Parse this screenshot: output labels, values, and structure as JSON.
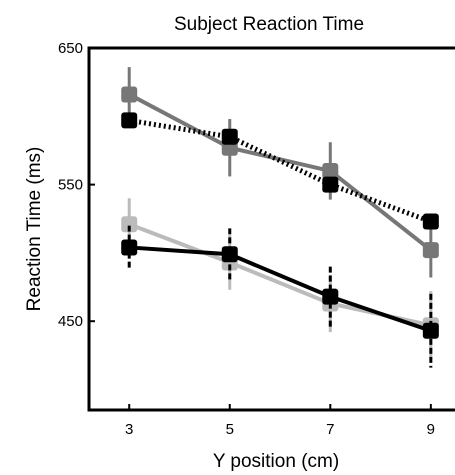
{
  "chart_data": {
    "type": "line",
    "title": "Subject Reaction Time",
    "xlabel": "Y position (cm)",
    "ylabel": "Reaction Time (ms)",
    "x": [
      3,
      5,
      7,
      9
    ],
    "x_tick_labels": [
      "3",
      "5",
      "7",
      "9"
    ],
    "y_ticks": [
      450,
      550,
      650
    ],
    "y_tick_labels": [
      "450",
      "550",
      "650"
    ],
    "xlim": [
      2.2,
      9.6
    ],
    "ylim": [
      385,
      650
    ],
    "grid": false,
    "series": [
      {
        "color": "#777777",
        "line_style": "solid",
        "values": [
          616,
          577,
          560,
          502
        ],
        "errors": [
          20,
          21,
          21,
          20
        ]
      },
      {
        "color": "#000000",
        "line_style": "dotted",
        "values": [
          597,
          585,
          550,
          523
        ],
        "errors": [
          0,
          0,
          0,
          0
        ]
      },
      {
        "color": "#bbbbbb",
        "line_style": "solid",
        "values": [
          521,
          493,
          463,
          447
        ],
        "errors": [
          19,
          20,
          21,
          25
        ]
      },
      {
        "color": "#000000",
        "line_style": "solid",
        "values": [
          504,
          499,
          468,
          443
        ],
        "errors": [
          16,
          19,
          22,
          27
        ]
      }
    ]
  }
}
